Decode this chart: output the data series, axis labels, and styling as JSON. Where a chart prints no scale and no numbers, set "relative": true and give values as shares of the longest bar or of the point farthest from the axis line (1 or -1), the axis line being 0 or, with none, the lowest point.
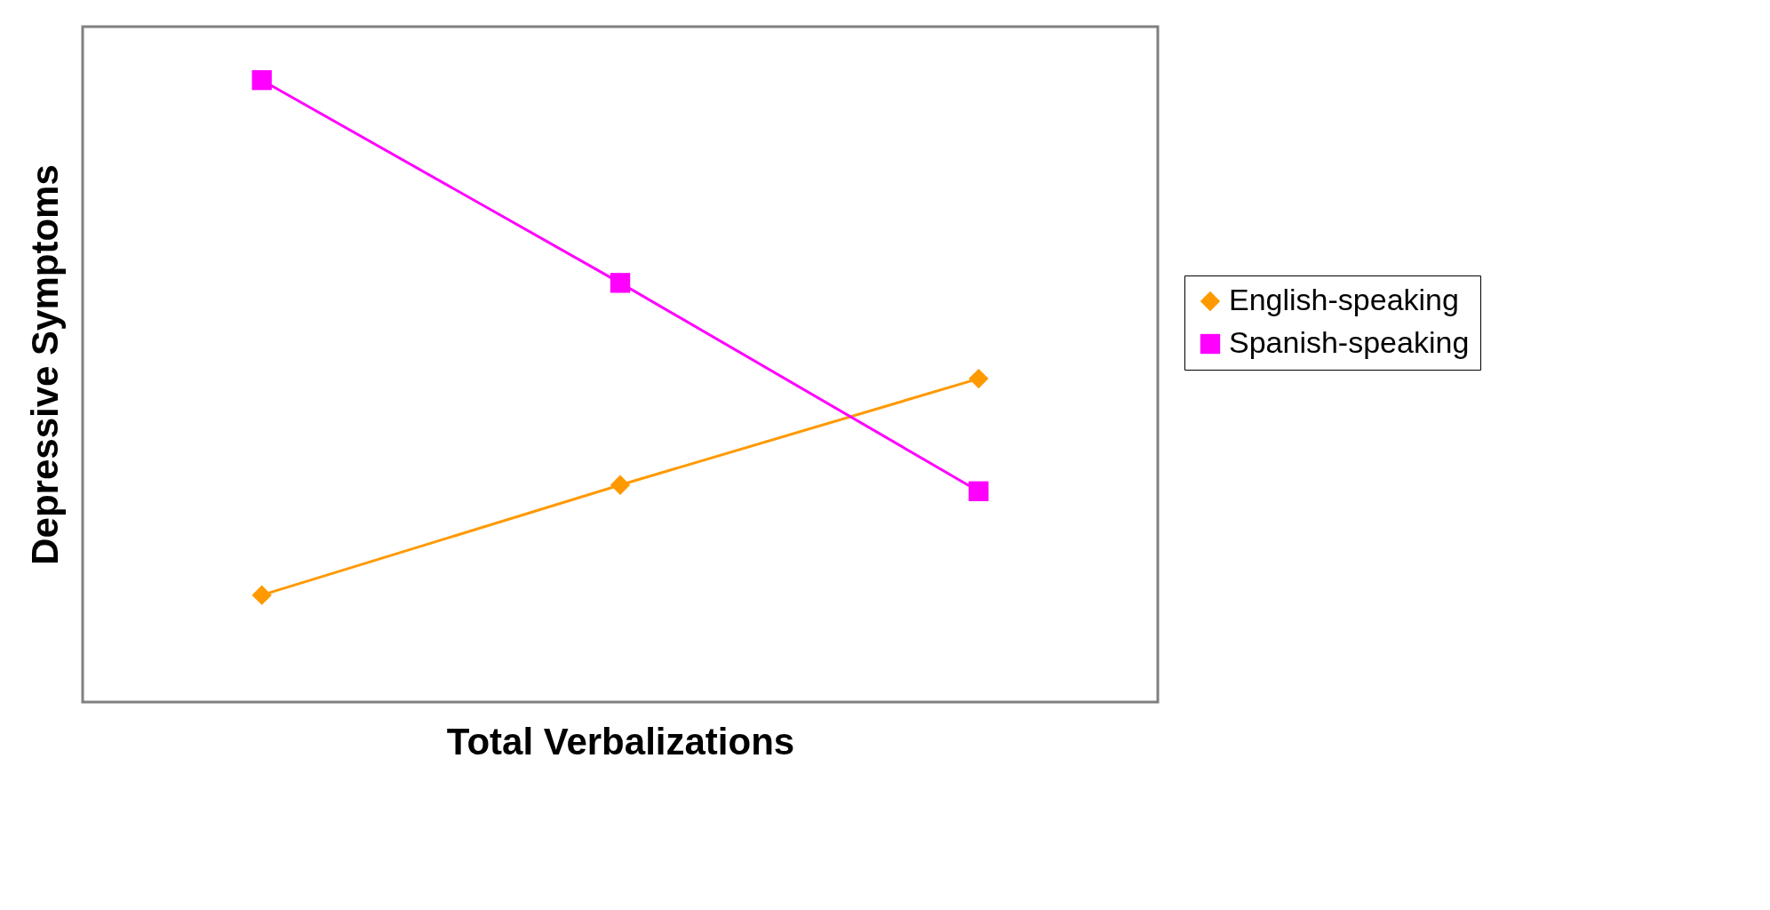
{
  "chart_data": {
    "type": "line",
    "relative": true,
    "xlabel": "Total Verbalizations",
    "ylabel": "Depressive Symptoms",
    "categories": [
      null,
      null,
      null
    ],
    "legend": "right",
    "grid": false,
    "line_style": "solid",
    "series": [
      {
        "name": "English-speaking",
        "color": "#ff9900",
        "marker": "diamond",
        "values": [
          0.172,
          0.349,
          0.52
        ]
      },
      {
        "name": "Spanish-speaking",
        "color": "#ff00ff",
        "marker": "square",
        "values": [
          1,
          0.674,
          0.339
        ]
      }
    ]
  }
}
